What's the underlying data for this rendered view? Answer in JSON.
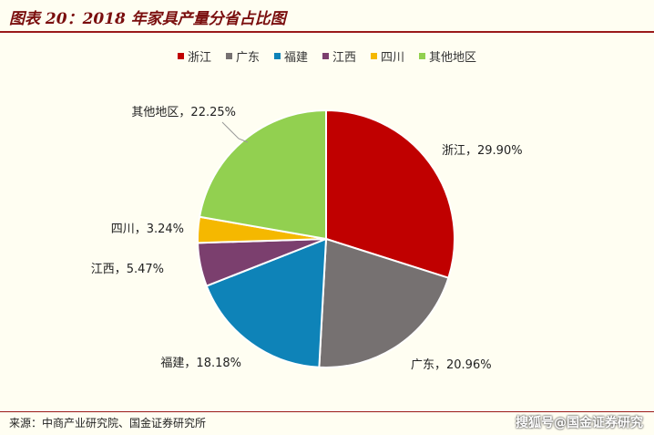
{
  "header": {
    "title": "图表 20：2018 年家具产量分省占比图"
  },
  "chart_data": {
    "type": "pie",
    "title": "",
    "legend_placement": "top-center",
    "slices": [
      {
        "name": "浙江",
        "value": 29.9,
        "label": "浙江，29.90%",
        "color": "#c00000"
      },
      {
        "name": "广东",
        "value": 20.96,
        "label": "广东，20.96%",
        "color": "#767171"
      },
      {
        "name": "福建",
        "value": 18.18,
        "label": "福建，18.18%",
        "color": "#0e83b8"
      },
      {
        "name": "江西",
        "value": 5.47,
        "label": "江西，5.47%",
        "color": "#7b3f6e"
      },
      {
        "name": "四川",
        "value": 3.24,
        "label": "四川，3.24%",
        "color": "#f5b800"
      },
      {
        "name": "其他地区",
        "value": 22.25,
        "label": "其他地区，22.25%",
        "color": "#92d050"
      }
    ]
  },
  "footer": {
    "source": "来源：中商产业研究院、国金证券研究所",
    "watermark": "搜狐号@国金证券研究"
  }
}
